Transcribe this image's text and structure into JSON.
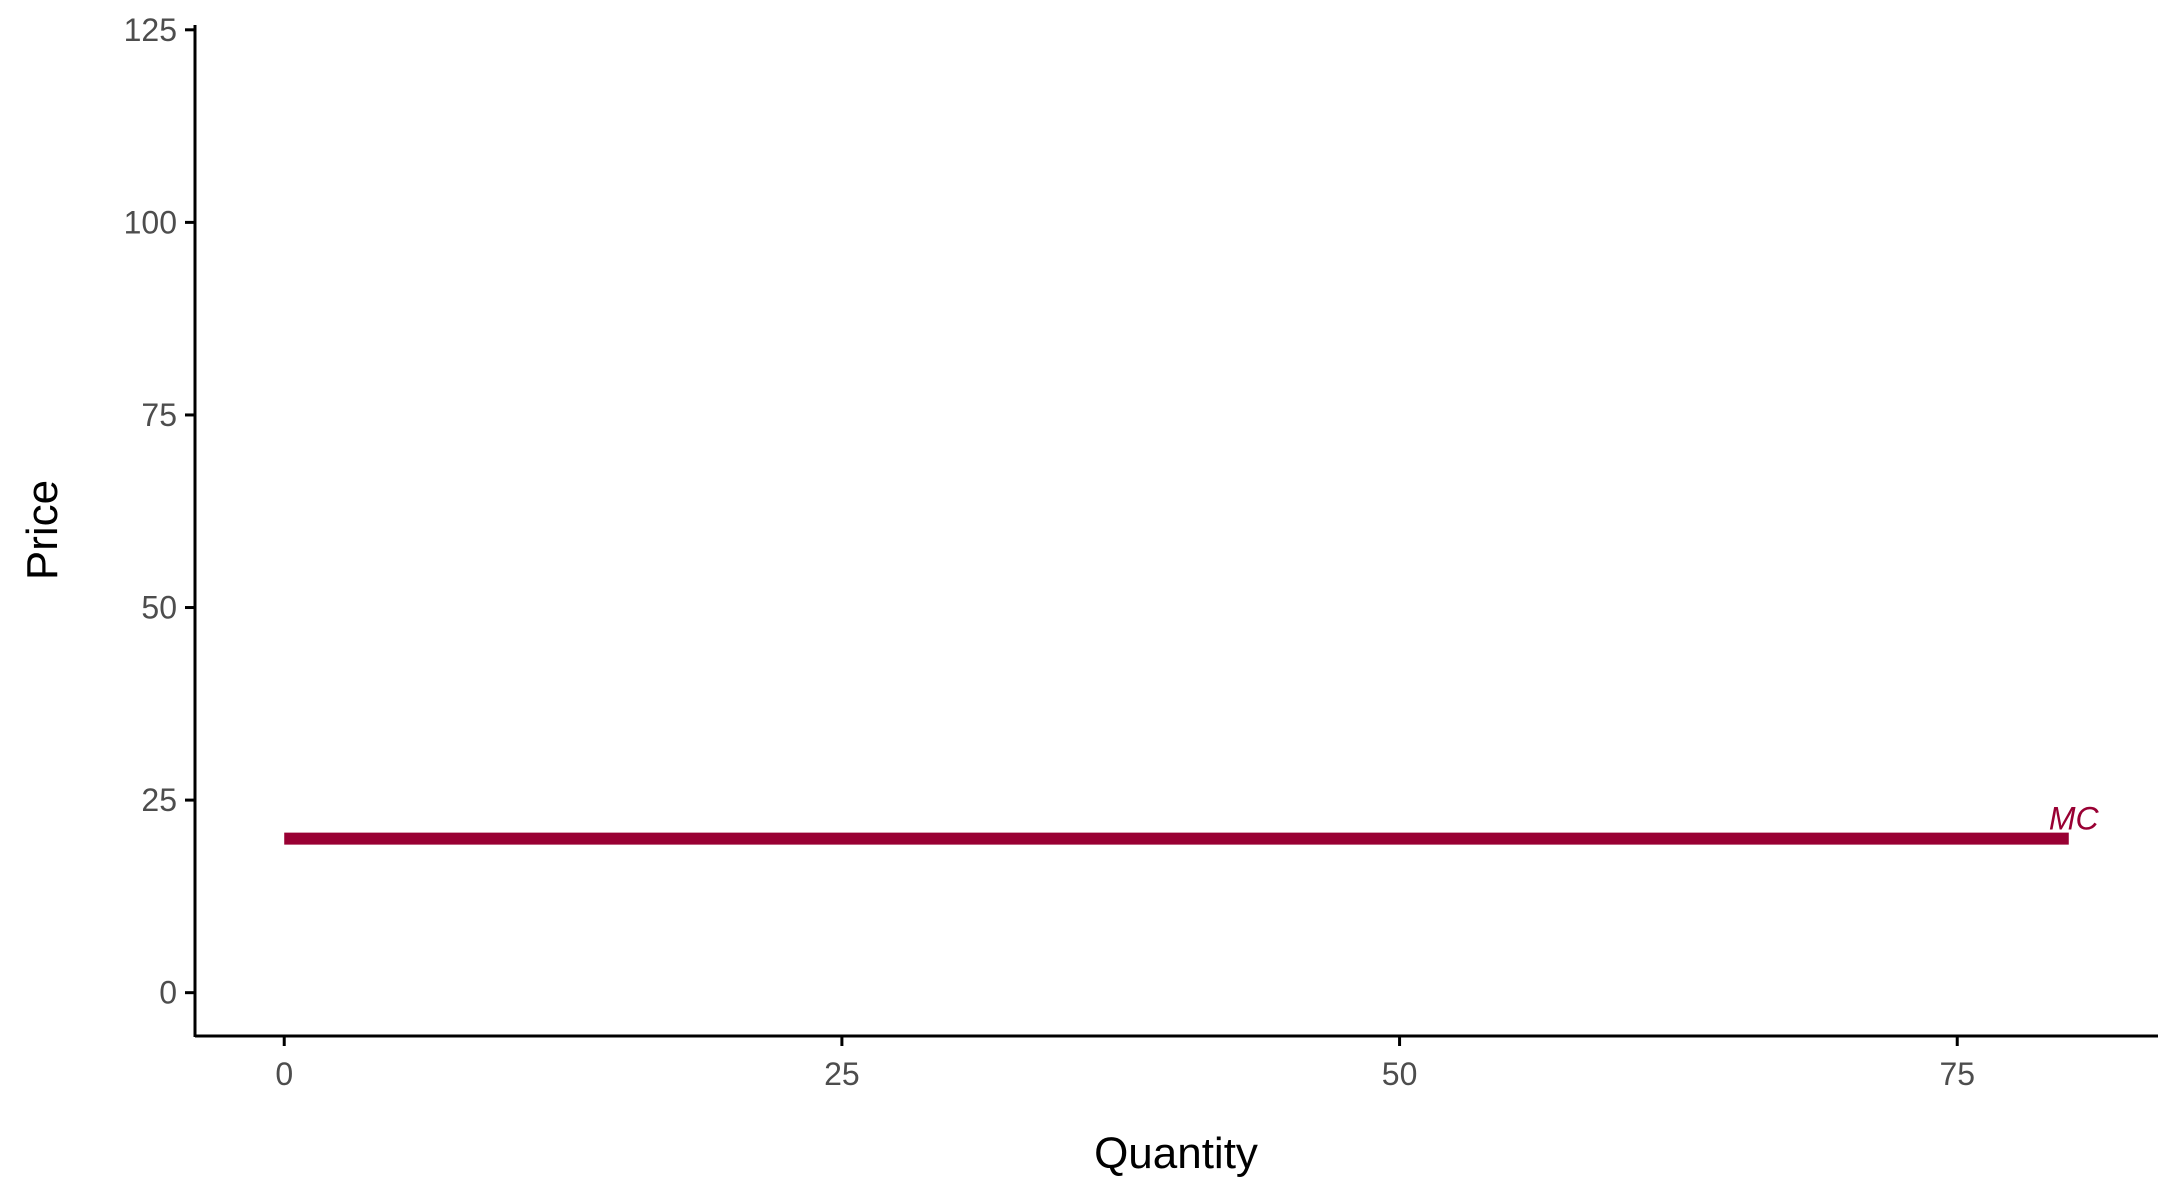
{
  "chart_data": {
    "type": "line",
    "title": "",
    "xlabel": "Quantity",
    "ylabel": "Price",
    "xlim": [
      -4,
      84
    ],
    "ylim": [
      -5.625,
      125.625
    ],
    "x_ticks": [
      0,
      25,
      50,
      75
    ],
    "y_ticks": [
      0,
      25,
      50,
      75,
      100,
      125
    ],
    "x_tick_labels": [
      "0",
      "25",
      "50",
      "75"
    ],
    "y_tick_labels": [
      "0",
      "25",
      "50",
      "75",
      "100",
      "125"
    ],
    "grid": false,
    "legend": "none",
    "series": [
      {
        "name": "MC",
        "color": "#990033",
        "x": [
          0,
          80
        ],
        "y": [
          20,
          20
        ],
        "label": "MC"
      }
    ]
  }
}
